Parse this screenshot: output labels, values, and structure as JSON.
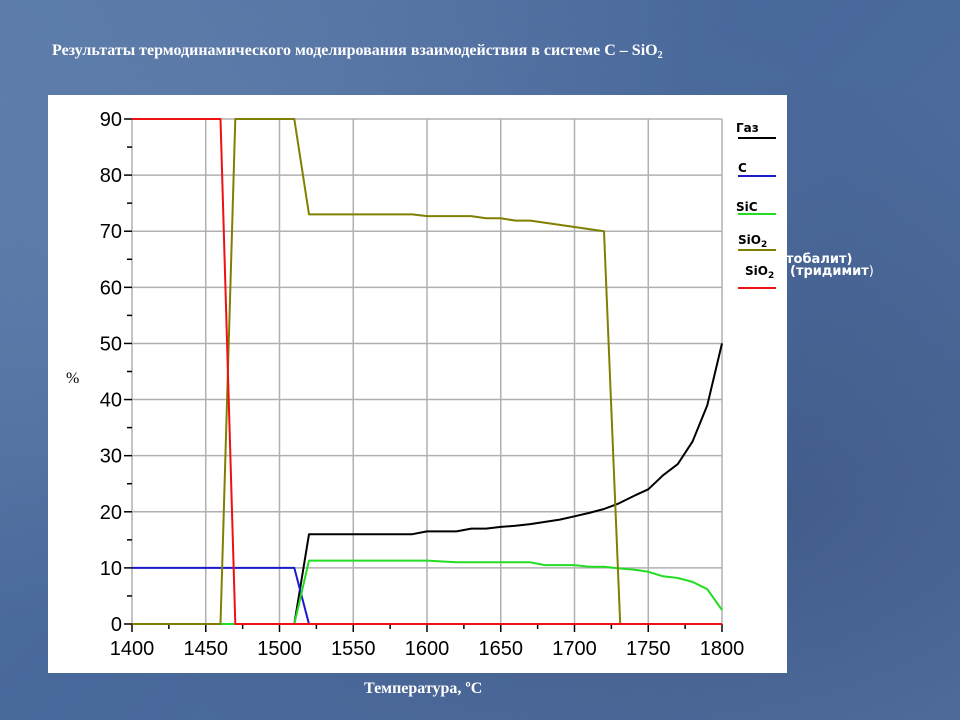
{
  "slide": {
    "title_main": "Результаты термодинамического моделирования взаимодействия в системе С – SiO",
    "title_sub": "2"
  },
  "colors": {
    "gas": "#000000",
    "c": "#1a1acc",
    "sic": "#22dd22",
    "sio2_cristobalite": "#808000",
    "sio2_tridymite": "#ee1111",
    "grid": "#b0b0b0"
  },
  "chart_data": {
    "type": "line",
    "xlabel": "Температура, ºС",
    "ylabel": "%",
    "xlim": [
      1400,
      1800
    ],
    "ylim": [
      0,
      90
    ],
    "x_ticks": [
      "1400",
      "1450",
      "1500",
      "1550",
      "1600",
      "1650",
      "1700",
      "1750",
      "1800"
    ],
    "y_ticks": [
      "0",
      "10",
      "20",
      "30",
      "40",
      "50",
      "60",
      "70",
      "80",
      "90"
    ],
    "grid": true,
    "legend_position": "right",
    "legend": [
      {
        "key": "gas",
        "label": "Газ",
        "sub": ""
      },
      {
        "key": "c",
        "label": "С",
        "sub": ""
      },
      {
        "key": "sic",
        "label": "SiC",
        "sub": ""
      },
      {
        "key": "sio2_cristobalite",
        "label": "SiO",
        "sub": "2"
      },
      {
        "key": "sio2_tridymite",
        "label": "SiO",
        "sub": "2",
        "suffix": " (тридимит)"
      }
    ],
    "overflow_labels": {
      "cristobalite": "тобалит)",
      "tridymite_sio": "SiO",
      "tridymite_sub": "2",
      "tridymite_rest": " (тридимит",
      "tridymite_paren": ")"
    },
    "series": [
      {
        "key": "gas",
        "name": "Газ",
        "points": [
          [
            1400,
            0
          ],
          [
            1510,
            0
          ],
          [
            1520,
            16
          ],
          [
            1590,
            16
          ],
          [
            1600,
            16.5
          ],
          [
            1620,
            16.5
          ],
          [
            1630,
            17
          ],
          [
            1640,
            17
          ],
          [
            1650,
            17.3
          ],
          [
            1660,
            17.5
          ],
          [
            1670,
            17.8
          ],
          [
            1680,
            18.2
          ],
          [
            1690,
            18.6
          ],
          [
            1700,
            19.2
          ],
          [
            1710,
            19.8
          ],
          [
            1720,
            20.5
          ],
          [
            1730,
            21.5
          ],
          [
            1740,
            22.8
          ],
          [
            1750,
            24
          ],
          [
            1760,
            26.5
          ],
          [
            1770,
            28.5
          ],
          [
            1780,
            32.5
          ],
          [
            1790,
            39
          ],
          [
            1800,
            50
          ]
        ]
      },
      {
        "key": "c",
        "name": "С",
        "points": [
          [
            1400,
            10
          ],
          [
            1510,
            10
          ],
          [
            1520,
            0
          ],
          [
            1800,
            0
          ]
        ]
      },
      {
        "key": "sic",
        "name": "SiC",
        "points": [
          [
            1400,
            0
          ],
          [
            1510,
            0
          ],
          [
            1520,
            11.3
          ],
          [
            1600,
            11.3
          ],
          [
            1620,
            11
          ],
          [
            1670,
            11
          ],
          [
            1680,
            10.5
          ],
          [
            1700,
            10.5
          ],
          [
            1710,
            10.2
          ],
          [
            1720,
            10.2
          ],
          [
            1730,
            9.9
          ],
          [
            1740,
            9.7
          ],
          [
            1750,
            9.3
          ],
          [
            1760,
            8.5
          ],
          [
            1770,
            8.2
          ],
          [
            1780,
            7.5
          ],
          [
            1790,
            6.2
          ],
          [
            1800,
            2.5
          ]
        ]
      },
      {
        "key": "sio2_cristobalite",
        "name": "SiO2",
        "points": [
          [
            1400,
            0
          ],
          [
            1460,
            0
          ],
          [
            1470,
            90
          ],
          [
            1510,
            90
          ],
          [
            1520,
            73
          ],
          [
            1590,
            73
          ],
          [
            1600,
            72.7
          ],
          [
            1630,
            72.7
          ],
          [
            1640,
            72.3
          ],
          [
            1650,
            72.3
          ],
          [
            1660,
            71.9
          ],
          [
            1670,
            71.9
          ],
          [
            1720,
            70
          ],
          [
            1731,
            0
          ],
          [
            1800,
            0
          ]
        ]
      },
      {
        "key": "sio2_tridymite",
        "name": "SiO2 (тридимит)",
        "points": [
          [
            1400,
            90
          ],
          [
            1460,
            90
          ],
          [
            1470,
            0
          ],
          [
            1800,
            0
          ]
        ]
      }
    ]
  }
}
